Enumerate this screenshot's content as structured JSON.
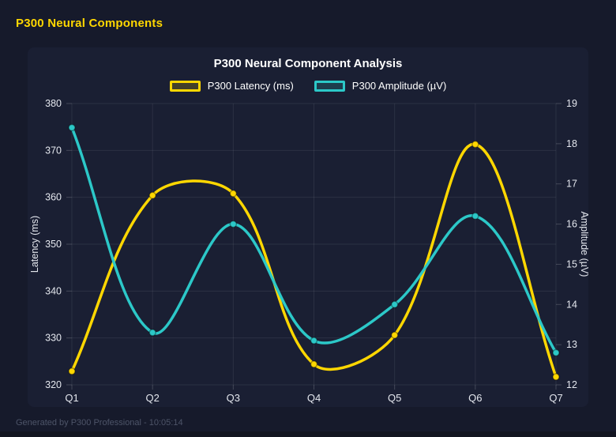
{
  "header": {
    "title": "P300 Neural Components"
  },
  "footer": {
    "text": "Generated by P300 Professional - 10:05:14"
  },
  "colors": {
    "background": "#161a2b",
    "panel": "#1a1f33",
    "title_text": "#ffffff",
    "tick_text": "#e4e7ee",
    "axis_title_text": "#e4e7ee",
    "grid": "rgba(255,255,255,0.08)",
    "tick_mark": "rgba(255,255,255,0.18)",
    "accent_yellow": "#ffd700",
    "accent_teal": "#2cc8c8",
    "footer_text": "#4d5468"
  },
  "chart_data": {
    "type": "line",
    "title": "P300 Neural Component Analysis",
    "categories": [
      "Q1",
      "Q2",
      "Q3",
      "Q4",
      "Q5",
      "Q6",
      "Q7"
    ],
    "series": [
      {
        "name": "P300 Latency (ms)",
        "axis": "left",
        "color": "#ffd700",
        "values": [
          322.9,
          360.4,
          360.8,
          324.4,
          330.6,
          371.3,
          321.7
        ]
      },
      {
        "name": "P300 Amplitude (µV)",
        "axis": "right",
        "color": "#2cc8c8",
        "values": [
          18.4,
          13.3,
          16.0,
          13.1,
          14.0,
          16.2,
          12.8
        ]
      }
    ],
    "axes": {
      "left": {
        "label": "Latency (ms)",
        "min": 320,
        "max": 380,
        "step": 10
      },
      "right": {
        "label": "Amplitude (µV)",
        "min": 12,
        "max": 19,
        "step": 1
      }
    },
    "legend_position": "top-center",
    "grid": true,
    "smooth": true,
    "marker": "circle"
  }
}
